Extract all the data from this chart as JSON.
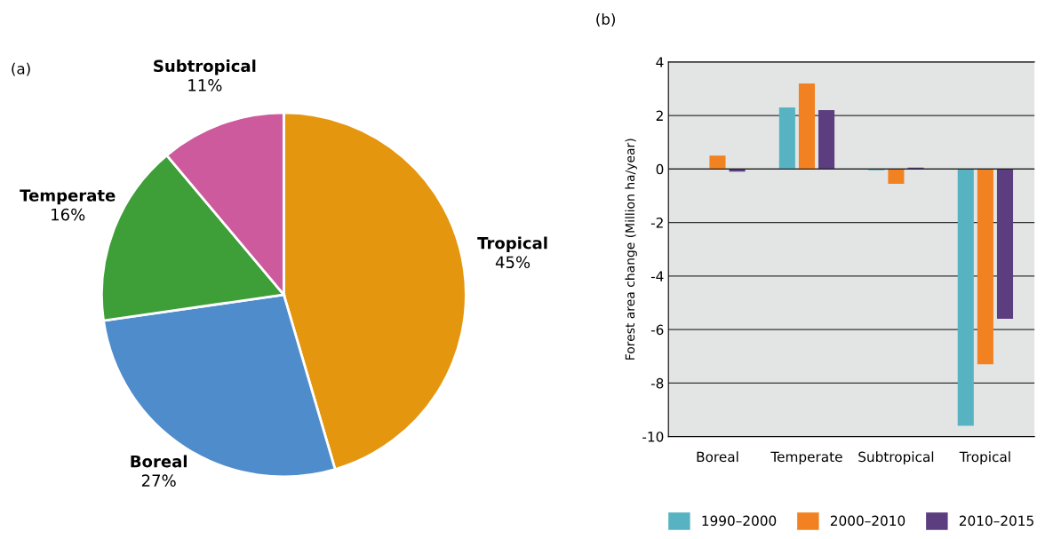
{
  "chart_data": [
    {
      "type": "pie",
      "title": "(a)",
      "categories": [
        "Tropical",
        "Boreal",
        "Temperate",
        "Subtropical"
      ],
      "values": [
        45,
        27,
        16,
        11
      ],
      "value_labels": [
        "45%",
        "27%",
        "16%",
        "11%"
      ],
      "colors": [
        "#e5960f",
        "#4f8ccb",
        "#3e9e38",
        "#cc5a9c"
      ]
    },
    {
      "type": "bar",
      "title": "(b)",
      "ylabel": "Forest area change (Million ha/year)",
      "categories": [
        "Boreal",
        "Temperate",
        "Subtropical",
        "Tropical"
      ],
      "series": [
        {
          "name": "1990–2000",
          "color": "#57b3c2",
          "values": [
            null,
            2.3,
            -0.05,
            -9.6
          ]
        },
        {
          "name": "2000–2010",
          "color": "#f28221",
          "values": [
            0.5,
            3.2,
            -0.55,
            -7.3
          ]
        },
        {
          "name": "2010–2015",
          "color": "#5c3d80",
          "values": [
            -0.1,
            2.2,
            0.05,
            -5.6
          ]
        }
      ],
      "ylim": [
        -10,
        4
      ],
      "yticks": [
        -10,
        -8,
        -6,
        -4,
        -2,
        0,
        2,
        4
      ],
      "grid": "y",
      "legend": "bottom"
    }
  ]
}
